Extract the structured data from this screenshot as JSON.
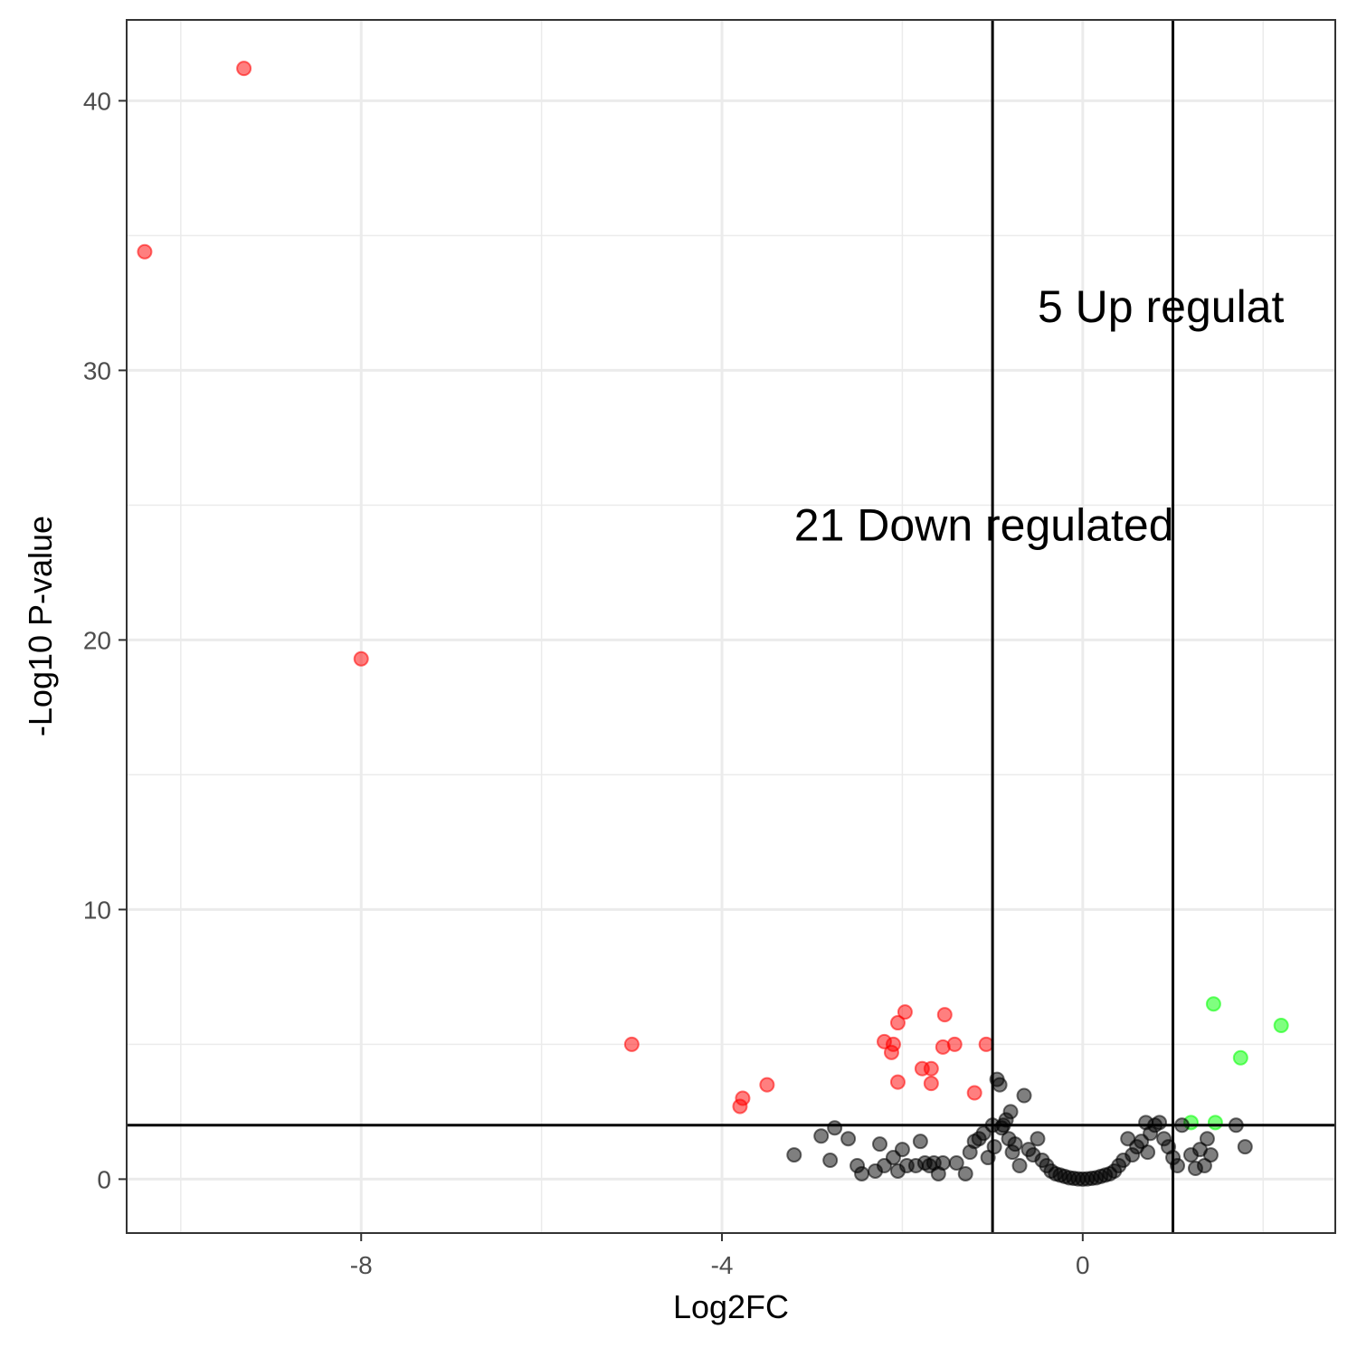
{
  "chart_data": {
    "type": "scatter",
    "title": "",
    "xlabel": "Log2FC",
    "ylabel": "-Log10 P-value",
    "xlim": [
      -10.6,
      2.8
    ],
    "ylim": [
      -2,
      43
    ],
    "x_ticks": [
      -8,
      -4,
      0
    ],
    "y_ticks": [
      0,
      10,
      20,
      30,
      40
    ],
    "x_tick_labels": [
      "-8",
      "-4",
      "0"
    ],
    "y_tick_labels": [
      "0",
      "10",
      "20",
      "30",
      "40"
    ],
    "grid": true,
    "thresholds": {
      "x": [
        -1,
        1
      ],
      "y": 2
    },
    "annotations": [
      {
        "text": "21 Down regulated",
        "x": -3.2,
        "y": 24.3
      },
      {
        "text": "5 Up regulat",
        "x": -0.5,
        "y": 32.4
      }
    ],
    "colors": {
      "down": "#ff0000",
      "up": "#00ff00",
      "ns": "#000000"
    },
    "series": [
      {
        "color": "#ff0000",
        "points": [
          [
            -10.4,
            34.4
          ],
          [
            -9.3,
            41.2
          ],
          [
            -8.0,
            19.3
          ],
          [
            -5.0,
            5.0
          ],
          [
            -3.8,
            2.7
          ],
          [
            -3.77,
            3.0
          ],
          [
            -3.5,
            3.5
          ],
          [
            -2.2,
            5.1
          ],
          [
            -2.1,
            5.0
          ],
          [
            -2.12,
            4.7
          ],
          [
            -2.05,
            5.8
          ],
          [
            -1.97,
            6.2
          ],
          [
            -2.05,
            3.6
          ],
          [
            -1.78,
            4.1
          ],
          [
            -1.68,
            4.1
          ],
          [
            -1.68,
            3.55
          ],
          [
            -1.55,
            4.9
          ],
          [
            -1.53,
            6.1
          ],
          [
            -1.42,
            5.0
          ],
          [
            -1.2,
            3.2
          ],
          [
            -1.07,
            5.0
          ]
        ]
      },
      {
        "color": "#00ff00",
        "points": [
          [
            1.2,
            2.1
          ],
          [
            1.45,
            6.5
          ],
          [
            1.47,
            2.1
          ],
          [
            1.75,
            4.5
          ],
          [
            2.2,
            5.7
          ]
        ]
      },
      {
        "color": "#000000",
        "points": [
          [
            -3.2,
            0.9
          ],
          [
            -2.9,
            1.6
          ],
          [
            -2.8,
            0.7
          ],
          [
            -2.75,
            1.9
          ],
          [
            -2.6,
            1.5
          ],
          [
            -2.5,
            0.5
          ],
          [
            -2.45,
            0.2
          ],
          [
            -2.3,
            0.3
          ],
          [
            -2.25,
            1.3
          ],
          [
            -2.2,
            0.5
          ],
          [
            -2.1,
            0.8
          ],
          [
            -2.05,
            0.3
          ],
          [
            -2.0,
            1.1
          ],
          [
            -1.95,
            0.5
          ],
          [
            -1.85,
            0.5
          ],
          [
            -1.8,
            1.4
          ],
          [
            -1.75,
            0.6
          ],
          [
            -1.7,
            0.5
          ],
          [
            -1.65,
            0.6
          ],
          [
            -1.6,
            0.2
          ],
          [
            -1.55,
            0.6
          ],
          [
            -1.4,
            0.6
          ],
          [
            -1.3,
            0.2
          ],
          [
            -1.25,
            1.0
          ],
          [
            -1.2,
            1.4
          ],
          [
            -1.15,
            1.5
          ],
          [
            -1.1,
            1.7
          ],
          [
            -1.05,
            0.8
          ],
          [
            -1.0,
            2.0
          ],
          [
            -0.98,
            1.2
          ],
          [
            -0.95,
            3.7
          ],
          [
            -0.92,
            3.5
          ],
          [
            -0.9,
            1.9
          ],
          [
            -0.88,
            2.0
          ],
          [
            -0.85,
            2.2
          ],
          [
            -0.82,
            1.5
          ],
          [
            -0.8,
            2.5
          ],
          [
            -0.78,
            1.0
          ],
          [
            -0.75,
            1.3
          ],
          [
            -0.7,
            0.5
          ],
          [
            -0.65,
            3.1
          ],
          [
            -0.6,
            1.1
          ],
          [
            -0.55,
            0.9
          ],
          [
            -0.5,
            1.5
          ],
          [
            -0.45,
            0.7
          ],
          [
            -0.4,
            0.5
          ],
          [
            -0.35,
            0.3
          ],
          [
            -0.3,
            0.2
          ],
          [
            -0.25,
            0.15
          ],
          [
            -0.2,
            0.1
          ],
          [
            -0.15,
            0.05
          ],
          [
            -0.1,
            0.03
          ],
          [
            -0.05,
            0.01
          ],
          [
            0.0,
            0.0
          ],
          [
            0.05,
            0.01
          ],
          [
            0.1,
            0.03
          ],
          [
            0.15,
            0.05
          ],
          [
            0.2,
            0.1
          ],
          [
            0.25,
            0.15
          ],
          [
            0.3,
            0.2
          ],
          [
            0.35,
            0.3
          ],
          [
            0.4,
            0.5
          ],
          [
            0.45,
            0.7
          ],
          [
            0.5,
            1.5
          ],
          [
            0.55,
            0.9
          ],
          [
            0.6,
            1.2
          ],
          [
            0.65,
            1.4
          ],
          [
            0.7,
            2.1
          ],
          [
            0.72,
            1.0
          ],
          [
            0.75,
            1.7
          ],
          [
            0.8,
            2.0
          ],
          [
            0.85,
            2.1
          ],
          [
            0.9,
            1.5
          ],
          [
            0.95,
            1.2
          ],
          [
            1.0,
            0.8
          ],
          [
            1.05,
            0.5
          ],
          [
            1.1,
            2.0
          ],
          [
            1.2,
            0.9
          ],
          [
            1.25,
            0.4
          ],
          [
            1.3,
            1.1
          ],
          [
            1.35,
            0.5
          ],
          [
            1.38,
            1.5
          ],
          [
            1.42,
            0.9
          ],
          [
            1.7,
            2.0
          ],
          [
            1.8,
            1.2
          ]
        ]
      }
    ]
  }
}
